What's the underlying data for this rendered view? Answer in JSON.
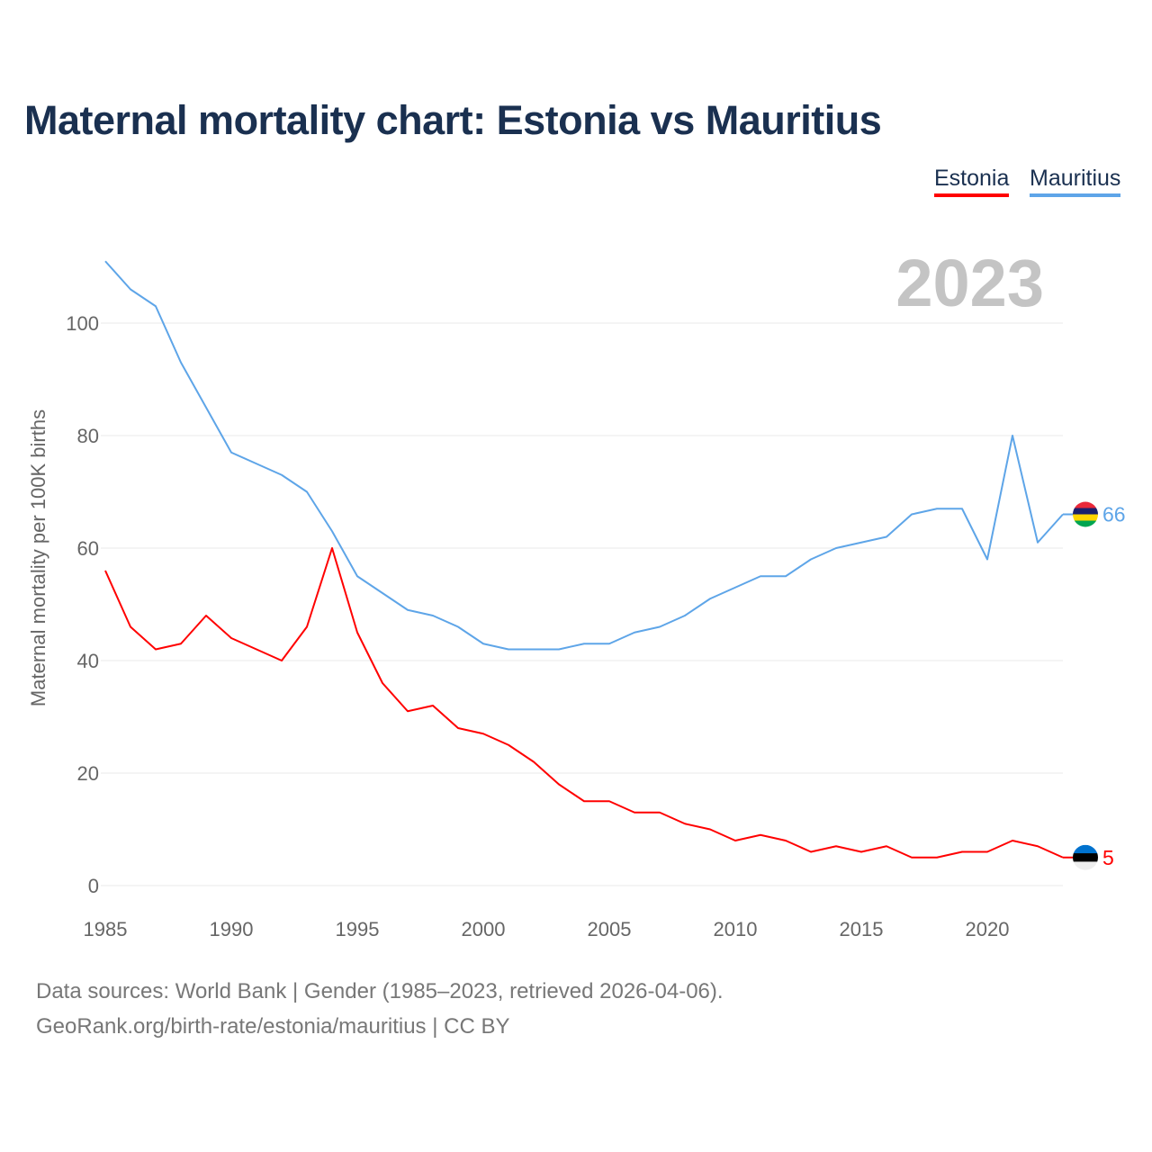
{
  "title": "Maternal mortality chart: Estonia vs Mauritius",
  "footer": {
    "line1": "Data sources: World Bank | Gender (1985–2023, retrieved 2026-04-06).",
    "line2": "GeoRank.org/birth-rate/estonia/mauritius | CC BY"
  },
  "chart_data": {
    "type": "line",
    "title": "Maternal mortality chart: Estonia vs Mauritius",
    "ylabel": "Maternal mortality per 100K births",
    "xlabel": "",
    "year_label": "2023",
    "xlim": [
      1985,
      2023
    ],
    "ylim": [
      0,
      110
    ],
    "xticks": [
      1985,
      1990,
      1995,
      2000,
      2005,
      2010,
      2015,
      2020
    ],
    "yticks": [
      0,
      20,
      40,
      60,
      80,
      100
    ],
    "grid": true,
    "legend_position": "top-right",
    "x": [
      1985,
      1986,
      1987,
      1988,
      1989,
      1990,
      1991,
      1992,
      1993,
      1994,
      1995,
      1996,
      1997,
      1998,
      1999,
      2000,
      2001,
      2002,
      2003,
      2004,
      2005,
      2006,
      2007,
      2008,
      2009,
      2010,
      2011,
      2012,
      2013,
      2014,
      2015,
      2016,
      2017,
      2018,
      2019,
      2020,
      2021,
      2022,
      2023
    ],
    "series": [
      {
        "name": "Estonia",
        "color": "#ff0000",
        "end_label": "5",
        "values": [
          56,
          46,
          42,
          43,
          48,
          44,
          42,
          40,
          46,
          60,
          45,
          36,
          31,
          32,
          28,
          27,
          25,
          22,
          18,
          15,
          15,
          13,
          13,
          11,
          10,
          8,
          9,
          8,
          6,
          7,
          6,
          7,
          5,
          5,
          6,
          6,
          8,
          7,
          5
        ]
      },
      {
        "name": "Mauritius",
        "color": "#5ea5e8",
        "end_label": "66",
        "values": [
          111,
          106,
          103,
          93,
          85,
          77,
          75,
          73,
          70,
          63,
          55,
          52,
          49,
          48,
          46,
          43,
          42,
          42,
          42,
          43,
          43,
          45,
          46,
          48,
          51,
          53,
          55,
          55,
          58,
          60,
          61,
          62,
          66,
          67,
          67,
          58,
          80,
          61,
          66
        ]
      }
    ]
  }
}
